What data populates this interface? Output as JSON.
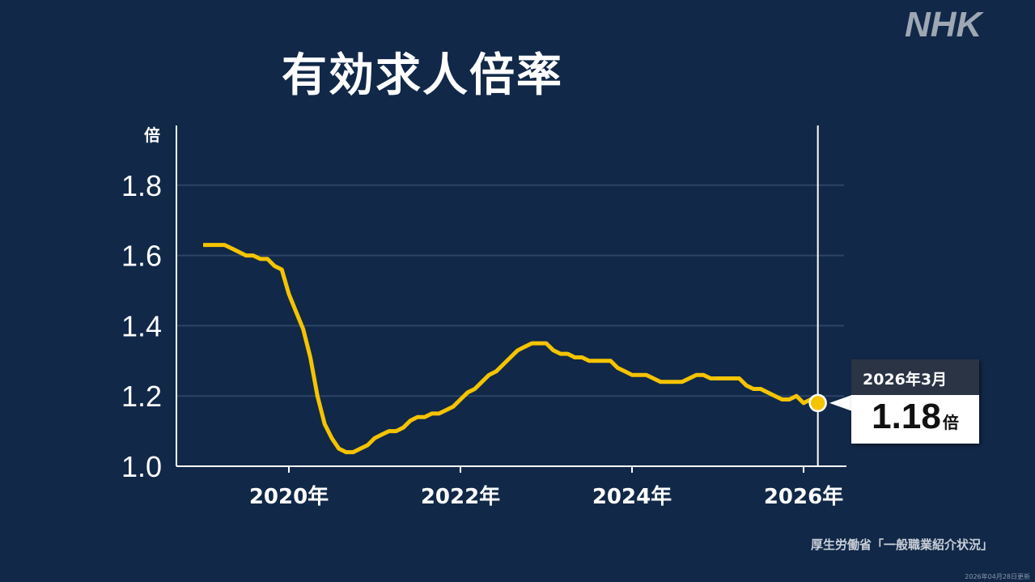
{
  "title": "有効求人倍率",
  "logo": "NHK",
  "source": "厚生労働省「一般職業紹介状況」",
  "updated": "2026年04月28日更新",
  "tooltip": {
    "label": "2026年3月",
    "value": "1.18",
    "unit": "倍"
  },
  "colors": {
    "background": "#112848",
    "line": "#f5c400",
    "grid": "#2d4466"
  },
  "chart_data": {
    "type": "line",
    "title": "有効求人倍率",
    "ylabel": "倍",
    "ylim": [
      1.0,
      1.85
    ],
    "yticks": [
      1.0,
      1.2,
      1.4,
      1.6,
      1.8
    ],
    "ytick_labels": [
      "1.0",
      "1.2",
      "1.4",
      "1.6",
      "1.8"
    ],
    "xticks": [
      "2020年",
      "2022年",
      "2024年",
      "2026年"
    ],
    "grid": true,
    "x_start": "2019-01",
    "x_end": "2026-03",
    "x_interval": "monthly",
    "values": [
      1.63,
      1.63,
      1.63,
      1.63,
      1.62,
      1.61,
      1.6,
      1.6,
      1.59,
      1.59,
      1.57,
      1.56,
      1.49,
      1.44,
      1.39,
      1.31,
      1.2,
      1.12,
      1.08,
      1.05,
      1.04,
      1.04,
      1.05,
      1.06,
      1.08,
      1.09,
      1.1,
      1.1,
      1.11,
      1.13,
      1.14,
      1.14,
      1.15,
      1.15,
      1.16,
      1.17,
      1.19,
      1.21,
      1.22,
      1.24,
      1.26,
      1.27,
      1.29,
      1.31,
      1.33,
      1.34,
      1.35,
      1.35,
      1.35,
      1.33,
      1.32,
      1.32,
      1.31,
      1.31,
      1.3,
      1.3,
      1.3,
      1.3,
      1.28,
      1.27,
      1.26,
      1.26,
      1.26,
      1.25,
      1.24,
      1.24,
      1.24,
      1.24,
      1.25,
      1.26,
      1.26,
      1.25,
      1.25,
      1.25,
      1.25,
      1.25,
      1.23,
      1.22,
      1.22,
      1.21,
      1.2,
      1.19,
      1.19,
      1.2,
      1.18,
      1.19,
      1.18
    ]
  }
}
